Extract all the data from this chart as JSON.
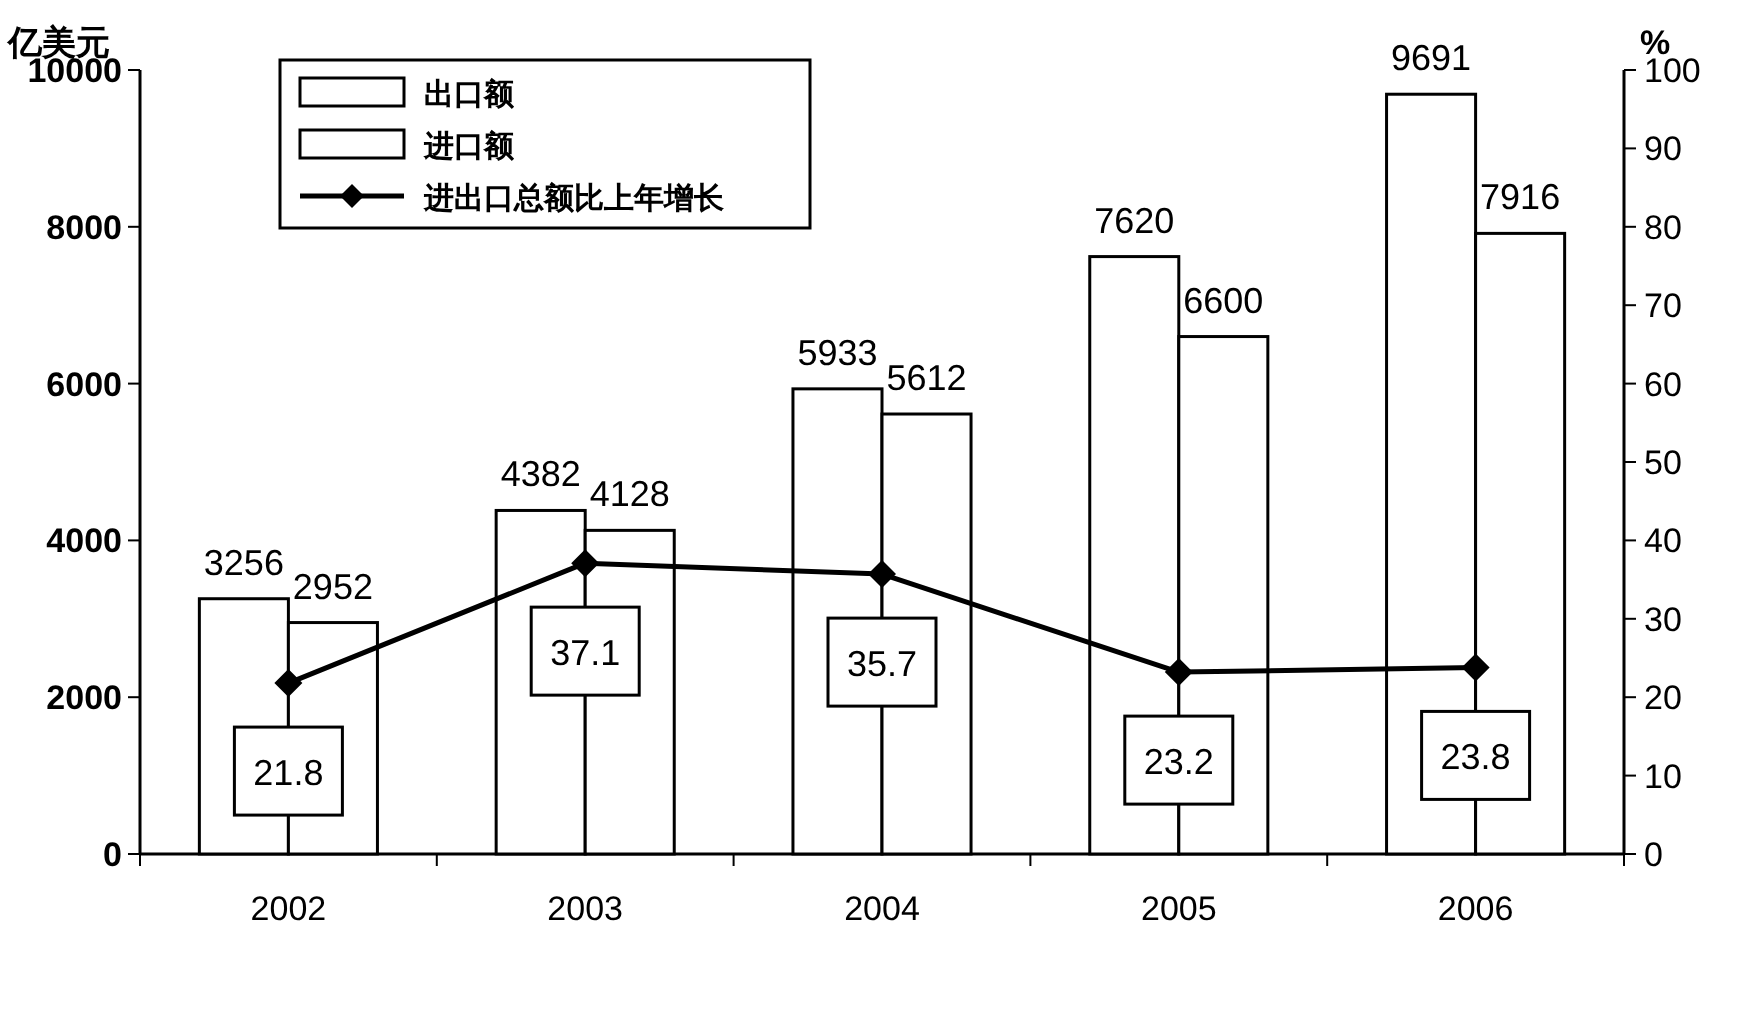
{
  "chart_data": {
    "type": "bar",
    "ylabel": "亿美元",
    "y2label": "%",
    "categories": [
      "2002",
      "2003",
      "2004",
      "2005",
      "2006"
    ],
    "series": [
      {
        "name": "出口额",
        "color": "#ffffff",
        "values": [
          3256,
          4382,
          5933,
          7620,
          9691
        ]
      },
      {
        "name": "进口额",
        "color": "#ffffff",
        "values": [
          2952,
          4128,
          5612,
          6600,
          7916
        ]
      },
      {
        "name": "进出口总额比上年增长",
        "type": "line",
        "axis": "y2",
        "color": "#000000",
        "values": [
          21.8,
          37.1,
          35.7,
          23.2,
          23.8
        ]
      }
    ],
    "marker": "diamond",
    "ylim": [
      0,
      10000
    ],
    "yticks": [
      0,
      2000,
      4000,
      6000,
      8000,
      10000
    ],
    "y2lim": [
      0,
      100
    ],
    "y2ticks": [
      0,
      10,
      20,
      30,
      40,
      50,
      60,
      70,
      80,
      90,
      100
    ],
    "data_labels": true,
    "legend": "top left",
    "grid": false
  }
}
